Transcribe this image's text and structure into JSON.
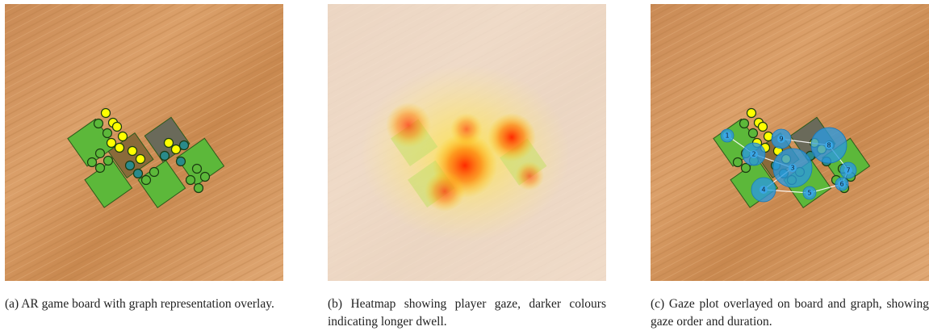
{
  "figure": {
    "panels": [
      {
        "caption": "(a) AR game board with graph representation overlay."
      },
      {
        "caption": "(b) Heatmap showing player gaze, darker colours indicating longer dwell."
      },
      {
        "caption": "(c) Gaze plot overlayed on board and graph, showing gaze order and duration."
      }
    ],
    "gaze_labels": [
      "1",
      "2",
      "3",
      "4",
      "5",
      "6",
      "7",
      "8",
      "9"
    ]
  }
}
